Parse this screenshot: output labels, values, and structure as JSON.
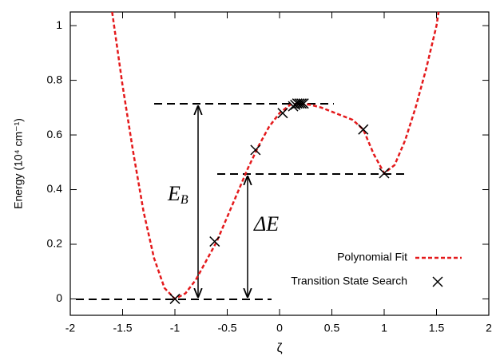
{
  "chart_data": {
    "type": "line",
    "x_label": "ζ",
    "y_label": "Energy (10⁴ cm⁻¹)",
    "xlim": [
      -2,
      2
    ],
    "ylim": [
      -0.06,
      1.05
    ],
    "xticks": [
      -2,
      -1.5,
      -1,
      -0.5,
      0,
      0.5,
      1,
      1.5,
      2
    ],
    "yticks": [
      0,
      0.2,
      0.4,
      0.6,
      0.8,
      1
    ],
    "legend": "lower right",
    "series": [
      {
        "name": "Polynomial Fit",
        "type": "line",
        "color": "#e41a1c",
        "x": [
          -1.6,
          -1.5,
          -1.4,
          -1.3,
          -1.2,
          -1.1,
          -1.0,
          -0.9,
          -0.8,
          -0.7,
          -0.6,
          -0.5,
          -0.4,
          -0.3,
          -0.2,
          -0.1,
          0.0,
          0.1,
          0.2,
          0.3,
          0.4,
          0.5,
          0.6,
          0.7,
          0.8,
          0.9,
          1.0,
          1.1,
          1.2,
          1.3,
          1.4,
          1.5,
          1.52
        ],
        "values": [
          1.05,
          0.78,
          0.54,
          0.32,
          0.15,
          0.04,
          0.0,
          0.02,
          0.07,
          0.14,
          0.21,
          0.3,
          0.39,
          0.48,
          0.56,
          0.63,
          0.68,
          0.71,
          0.715,
          0.71,
          0.7,
          0.685,
          0.67,
          0.655,
          0.62,
          0.53,
          0.46,
          0.49,
          0.58,
          0.7,
          0.84,
          1.0,
          1.05
        ]
      },
      {
        "name": "Transition State Search",
        "type": "scatter",
        "color": "#000000",
        "x": [
          -1.0,
          -0.62,
          -0.23,
          0.03,
          0.13,
          0.15,
          0.17,
          0.19,
          0.21,
          0.23,
          0.8,
          1.0
        ],
        "values": [
          0.0,
          0.21,
          0.545,
          0.68,
          0.705,
          0.71,
          0.715,
          0.715,
          0.715,
          0.715,
          0.62,
          0.46
        ]
      }
    ],
    "annotations": [
      {
        "text": "E",
        "sub": "B"
      },
      {
        "text": "ΔE"
      }
    ]
  }
}
